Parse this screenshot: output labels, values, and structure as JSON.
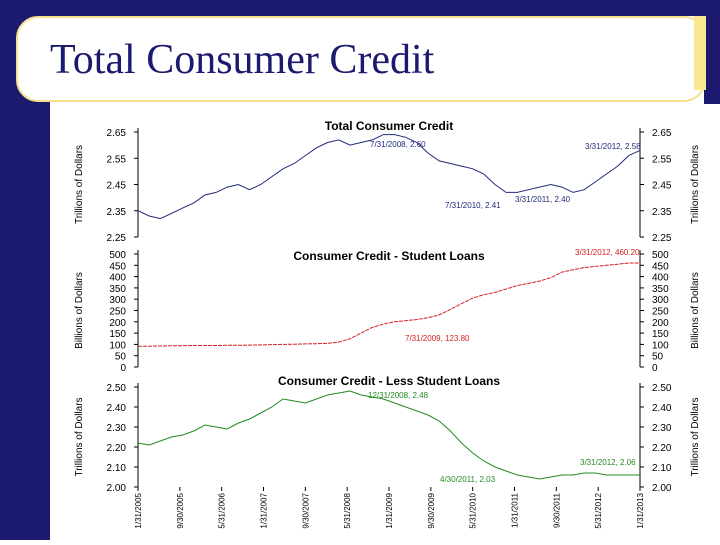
{
  "slide": {
    "title": "Total Consumer Credit"
  },
  "colors": {
    "frame": "#1c1a6e",
    "accent": "#f2e08a",
    "total": "#1f2a78",
    "student": "#d42020",
    "less": "#228b22"
  },
  "chart_data": [
    {
      "type": "line",
      "title": "Total Consumer Credit",
      "ylabel": "Trillions of Dollars",
      "ylim": [
        2.25,
        2.65
      ],
      "yticks": [
        "2.65",
        "2.55",
        "2.45",
        "2.35",
        "2.25"
      ],
      "series": [
        {
          "values": [
            2.35,
            2.33,
            2.32,
            2.34,
            2.36,
            2.38,
            2.41,
            2.42,
            2.44,
            2.45,
            2.43,
            2.45,
            2.48,
            2.51,
            2.53,
            2.56,
            2.59,
            2.61,
            2.62,
            2.6,
            2.61,
            2.62,
            2.64,
            2.64,
            2.63,
            2.61,
            2.57,
            2.54,
            2.53,
            2.52,
            2.51,
            2.49,
            2.45,
            2.42,
            2.42,
            2.43,
            2.44,
            2.45,
            2.44,
            2.42,
            2.43,
            2.46,
            2.49,
            2.52,
            2.56,
            2.58
          ]
        }
      ],
      "annotations": [
        "7/31/2008, 2.60",
        "3/31/2012, 2.58",
        "7/31/2010, 2.41",
        "3/31/2011, 2.40"
      ]
    },
    {
      "type": "line",
      "title": "Consumer Credit - Student Loans",
      "ylabel": "Billions of Dollars",
      "ylim": [
        0,
        500
      ],
      "yticks": [
        "500",
        "450",
        "400",
        "350",
        "300",
        "250",
        "200",
        "150",
        "100",
        "50",
        "0"
      ],
      "series": [
        {
          "values": [
            92,
            92,
            93,
            94,
            94,
            95,
            95,
            95,
            96,
            96,
            97,
            98,
            99,
            100,
            101,
            102,
            103,
            105,
            110,
            125,
            150,
            175,
            190,
            200,
            205,
            210,
            218,
            230,
            255,
            280,
            305,
            320,
            330,
            345,
            360,
            370,
            380,
            395,
            420,
            430,
            440,
            445,
            450,
            455,
            460,
            460
          ]
        }
      ],
      "annotations": [
        "3/31/2012, 460.20",
        "7/31/2009, 123.80"
      ]
    },
    {
      "type": "line",
      "title": "Consumer Credit - Less Student Loans",
      "ylabel": "Trillions of Dollars",
      "ylim": [
        2.0,
        2.5
      ],
      "yticks": [
        "2.50",
        "2.40",
        "2.30",
        "2.20",
        "2.10",
        "2.00"
      ],
      "series": [
        {
          "values": [
            2.22,
            2.21,
            2.23,
            2.25,
            2.26,
            2.28,
            2.31,
            2.3,
            2.29,
            2.32,
            2.34,
            2.37,
            2.4,
            2.44,
            2.43,
            2.42,
            2.44,
            2.46,
            2.47,
            2.48,
            2.46,
            2.45,
            2.44,
            2.42,
            2.4,
            2.38,
            2.36,
            2.33,
            2.28,
            2.22,
            2.17,
            2.13,
            2.1,
            2.08,
            2.06,
            2.05,
            2.04,
            2.05,
            2.06,
            2.06,
            2.07,
            2.07,
            2.06,
            2.06,
            2.06,
            2.06
          ]
        }
      ],
      "annotations": [
        "12/31/2008, 2.48",
        "4/30/2011, 2.03",
        "3/31/2012, 2.06"
      ],
      "xticks": [
        "1/31/2005",
        "9/30/2005",
        "5/31/2006",
        "1/31/2007",
        "9/30/2007",
        "5/31/2008",
        "1/31/2009",
        "9/30/2009",
        "5/31/2010",
        "1/31/2011",
        "9/30/2011",
        "5/31/2012",
        "1/31/2013"
      ]
    }
  ]
}
